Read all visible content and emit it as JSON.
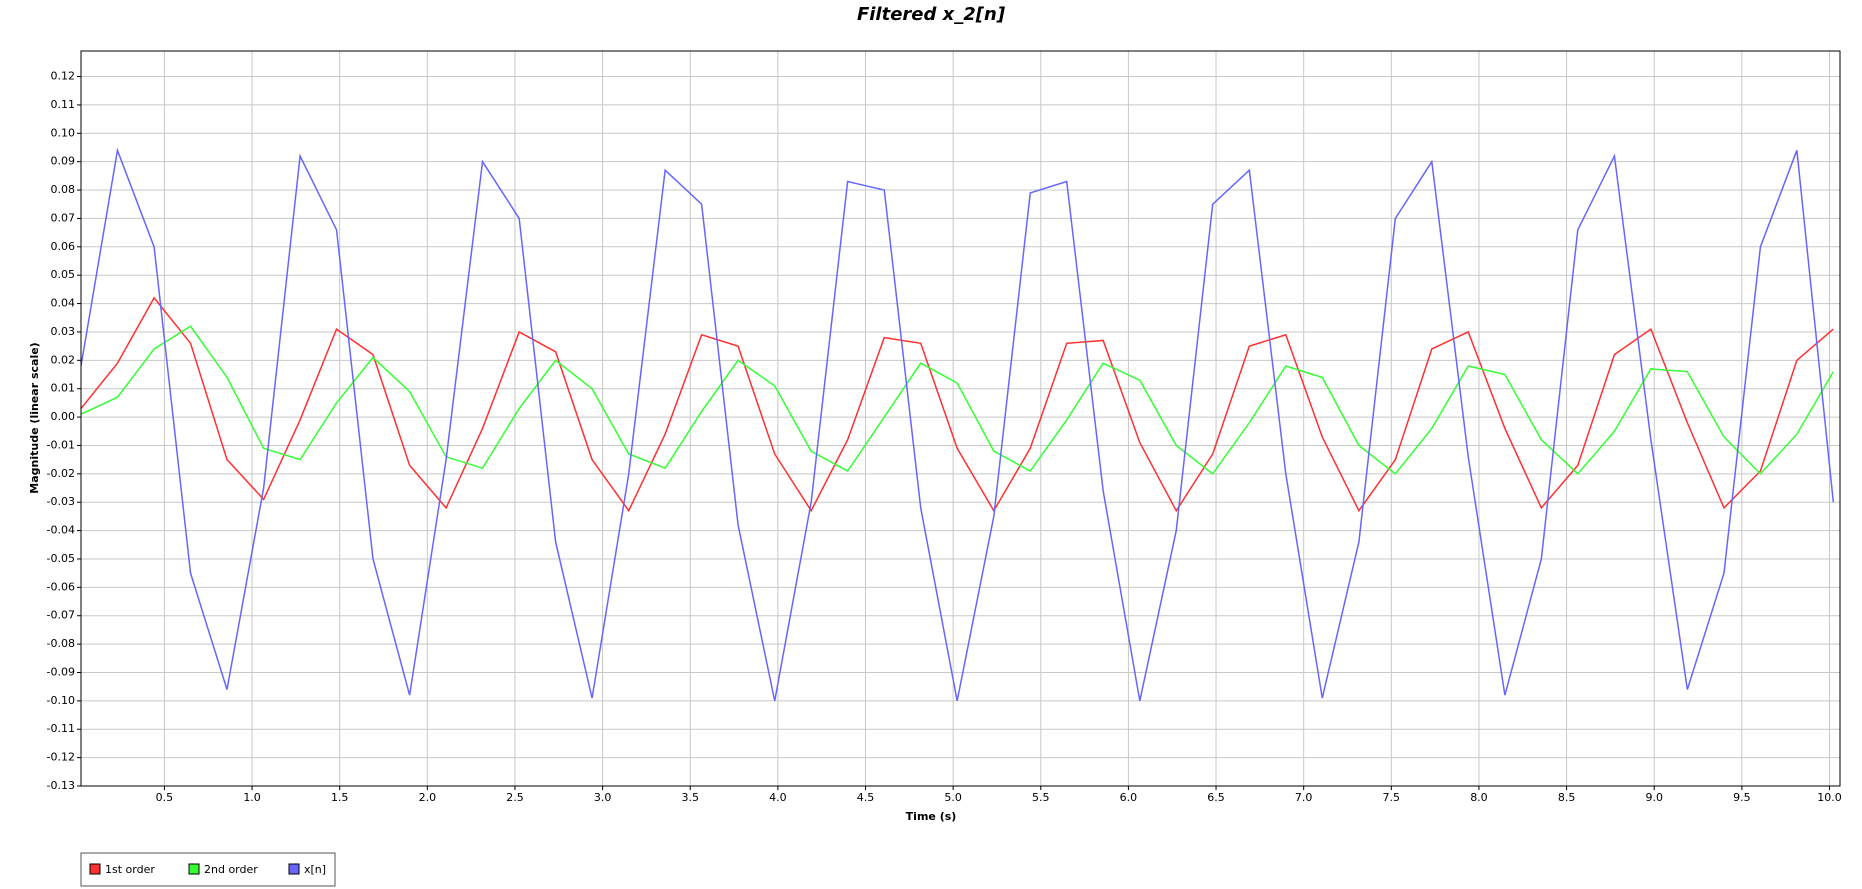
{
  "chart_data": {
    "type": "line",
    "title": "Filtered x_2[n]",
    "xlabel": "Time (s)",
    "ylabel": "Magnitude (linear scale)",
    "x": [
      0.024,
      0.232,
      0.441,
      0.649,
      0.857,
      1.066,
      1.274,
      1.482,
      1.69,
      1.899,
      2.107,
      2.315,
      2.524,
      2.732,
      2.94,
      3.149,
      3.357,
      3.565,
      3.773,
      3.982,
      4.19,
      4.398,
      4.607,
      4.815,
      5.023,
      5.232,
      5.44,
      5.648,
      5.856,
      6.065,
      6.273,
      6.481,
      6.69,
      6.898,
      7.106,
      7.315,
      7.523,
      7.731,
      7.939,
      8.148,
      8.356,
      8.564,
      8.773,
      8.981,
      9.189,
      9.398,
      9.606,
      9.814,
      10.022
    ],
    "series": [
      {
        "name": "1st order",
        "color": "#ff3030",
        "values": [
          0.003,
          0.019,
          0.042,
          0.026,
          -0.015,
          -0.029,
          -0.001,
          0.031,
          0.022,
          -0.017,
          -0.032,
          -0.004,
          0.03,
          0.023,
          -0.015,
          -0.033,
          -0.006,
          0.029,
          0.025,
          -0.013,
          -0.033,
          -0.008,
          0.028,
          0.026,
          -0.011,
          -0.033,
          -0.011,
          0.026,
          0.027,
          -0.009,
          -0.033,
          -0.013,
          0.025,
          0.029,
          -0.007,
          -0.033,
          -0.015,
          0.024,
          0.03,
          -0.004,
          -0.032,
          -0.017,
          0.022,
          0.031,
          -0.002,
          -0.032,
          -0.019,
          0.02,
          0.031
        ]
      },
      {
        "name": "2nd order",
        "color": "#33ff33",
        "values": [
          0.001,
          0.007,
          0.024,
          0.032,
          0.014,
          -0.011,
          -0.015,
          0.005,
          0.021,
          0.009,
          -0.014,
          -0.018,
          0.003,
          0.02,
          0.01,
          -0.013,
          -0.018,
          0.002,
          0.02,
          0.011,
          -0.012,
          -0.019,
          0.0,
          0.019,
          0.012,
          -0.012,
          -0.019,
          -0.001,
          0.019,
          0.013,
          -0.01,
          -0.02,
          -0.002,
          0.018,
          0.014,
          -0.01,
          -0.02,
          -0.004,
          0.018,
          0.015,
          -0.008,
          -0.02,
          -0.005,
          0.017,
          0.016,
          -0.007,
          -0.02,
          -0.006,
          0.016
        ]
      },
      {
        "name": "x[n]",
        "color": "#6666ff",
        "values": [
          0.018,
          0.094,
          0.06,
          -0.055,
          -0.096,
          -0.025,
          0.092,
          0.066,
          -0.05,
          -0.098,
          -0.015,
          0.09,
          0.07,
          -0.044,
          -0.099,
          -0.02,
          0.087,
          0.075,
          -0.038,
          -0.1,
          -0.03,
          0.083,
          0.08,
          -0.032,
          -0.1,
          -0.035,
          0.079,
          0.083,
          -0.026,
          -0.1,
          -0.04,
          0.075,
          0.087,
          -0.02,
          -0.099,
          -0.044,
          0.07,
          0.09,
          -0.014,
          -0.098,
          -0.05,
          0.066,
          0.092,
          -0.008,
          -0.096,
          -0.055,
          0.06,
          0.094,
          -0.03
        ]
      }
    ],
    "xlim": [
      0.024,
      10.06
    ],
    "ylim": [
      -0.13,
      0.129
    ],
    "xticks": [
      {
        "value": 0.5,
        "label": "0.5"
      },
      {
        "value": 1.0,
        "label": "1.0"
      },
      {
        "value": 1.5,
        "label": "1.5"
      },
      {
        "value": 2.0,
        "label": "2.0"
      },
      {
        "value": 2.5,
        "label": "2.5"
      },
      {
        "value": 3.0,
        "label": "3.0"
      },
      {
        "value": 3.5,
        "label": "3.5"
      },
      {
        "value": 4.0,
        "label": "4.0"
      },
      {
        "value": 4.5,
        "label": "4.5"
      },
      {
        "value": 5.0,
        "label": "5.0"
      },
      {
        "value": 5.5,
        "label": "5.5"
      },
      {
        "value": 6.0,
        "label": "6.0"
      },
      {
        "value": 6.5,
        "label": "6.5"
      },
      {
        "value": 7.0,
        "label": "7.0"
      },
      {
        "value": 7.5,
        "label": "7.5"
      },
      {
        "value": 8.0,
        "label": "8.0"
      },
      {
        "value": 8.5,
        "label": "8.5"
      },
      {
        "value": 9.0,
        "label": "9.0"
      },
      {
        "value": 9.5,
        "label": "9.5"
      },
      {
        "value": 10.0,
        "label": "10.0"
      }
    ],
    "yticks": [
      {
        "value": -0.13,
        "label": "-0.13"
      },
      {
        "value": -0.12,
        "label": "-0.12"
      },
      {
        "value": -0.11,
        "label": "-0.11"
      },
      {
        "value": -0.1,
        "label": "-0.10"
      },
      {
        "value": -0.09,
        "label": "-0.09"
      },
      {
        "value": -0.08,
        "label": "-0.08"
      },
      {
        "value": -0.07,
        "label": "-0.07"
      },
      {
        "value": -0.06,
        "label": "-0.06"
      },
      {
        "value": -0.05,
        "label": "-0.05"
      },
      {
        "value": -0.04,
        "label": "-0.04"
      },
      {
        "value": -0.03,
        "label": "-0.03"
      },
      {
        "value": -0.02,
        "label": "-0.02"
      },
      {
        "value": -0.01,
        "label": "-0.01"
      },
      {
        "value": 0,
        "label": "0.00"
      },
      {
        "value": 0.01,
        "label": "0.01"
      },
      {
        "value": 0.02,
        "label": "0.02"
      },
      {
        "value": 0.03,
        "label": "0.03"
      },
      {
        "value": 0.04,
        "label": "0.04"
      },
      {
        "value": 0.05,
        "label": "0.05"
      },
      {
        "value": 0.06,
        "label": "0.06"
      },
      {
        "value": 0.07,
        "label": "0.07"
      },
      {
        "value": 0.08,
        "label": "0.08"
      },
      {
        "value": 0.09,
        "label": "0.09"
      },
      {
        "value": 0.1,
        "label": "0.10"
      },
      {
        "value": 0.11,
        "label": "0.11"
      },
      {
        "value": 0.12,
        "label": "0.12"
      }
    ],
    "grid": true,
    "legend": "bottom-left"
  }
}
